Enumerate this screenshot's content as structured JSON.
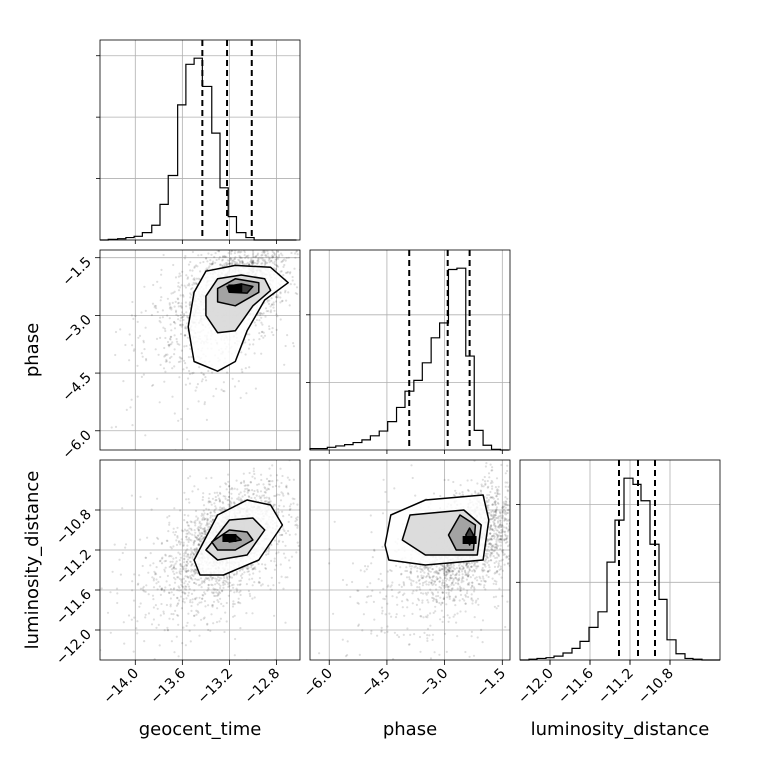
{
  "chart_data": {
    "type": "corner",
    "variables": [
      {
        "key": "geocent_time",
        "label": "geocent_time",
        "range": [
          -14.3,
          -12.6
        ],
        "ticks": [
          -14.0,
          -13.6,
          -13.2,
          -12.8
        ],
        "tick_labels": [
          "−14.0",
          "−13.6",
          "−13.2",
          "−12.8"
        ],
        "quantiles": [
          -13.43,
          -13.22,
          -13.01
        ],
        "hist_bins": [
          -14.3,
          -14.23,
          -14.15,
          -14.08,
          -14.01,
          -13.94,
          -13.86,
          -13.79,
          -13.72,
          -13.64,
          -13.57,
          -13.5,
          -13.43,
          -13.35,
          -13.28,
          -13.21,
          -13.14,
          -13.06,
          -12.99,
          -12.92,
          -12.85,
          -12.77,
          -12.7,
          -12.63
        ],
        "hist_counts": [
          0,
          1,
          2,
          4,
          6,
          12,
          24,
          58,
          105,
          220,
          286,
          296,
          250,
          174,
          85,
          38,
          12,
          4,
          0,
          0,
          0,
          0,
          0
        ]
      },
      {
        "key": "phase",
        "label": "phase",
        "range": [
          -6.5,
          -1.3
        ],
        "ticks": [
          -6.0,
          -4.5,
          -3.0,
          -1.5
        ],
        "tick_labels": [
          "−6.0",
          "−4.5",
          "−3.0",
          "−1.5"
        ],
        "quantiles": [
          -3.92,
          -2.92,
          -2.35
        ],
        "hist_bins": [
          -6.5,
          -6.28,
          -6.05,
          -5.83,
          -5.6,
          -5.38,
          -5.15,
          -4.93,
          -4.7,
          -4.48,
          -4.25,
          -4.03,
          -3.8,
          -3.58,
          -3.35,
          -3.13,
          -2.9,
          -2.68,
          -2.45,
          -2.23,
          -2.0,
          -1.78,
          -1.55,
          -1.33
        ],
        "hist_counts": [
          2,
          2,
          4,
          6,
          8,
          11,
          15,
          21,
          28,
          42,
          63,
          87,
          103,
          129,
          166,
          188,
          267,
          269,
          139,
          29,
          7,
          1,
          0
        ]
      },
      {
        "key": "luminosity_distance",
        "label": "luminosity_distance",
        "range": [
          -12.3,
          -10.3
        ],
        "ticks": [
          -12.0,
          -11.6,
          -11.2,
          -10.8
        ],
        "tick_labels": [
          "−12.0",
          "−11.6",
          "−11.2",
          "−10.8"
        ],
        "quantiles": [
          -11.31,
          -11.12,
          -10.95
        ],
        "hist_bins": [
          -12.3,
          -12.21,
          -12.13,
          -12.04,
          -11.96,
          -11.87,
          -11.78,
          -11.7,
          -11.61,
          -11.52,
          -11.43,
          -11.35,
          -11.26,
          -11.17,
          -11.09,
          -11.0,
          -10.91,
          -10.83,
          -10.74,
          -10.65,
          -10.57,
          -10.48,
          -10.39,
          -10.3
        ],
        "hist_counts": [
          0,
          1,
          2,
          3,
          5,
          9,
          15,
          24,
          42,
          62,
          126,
          180,
          234,
          226,
          205,
          149,
          78,
          26,
          8,
          2,
          1,
          0,
          0
        ]
      }
    ],
    "pairs": [
      {
        "x": "geocent_time",
        "y": "phase",
        "mode": [
          -13.15,
          -2.3
        ],
        "levels": [
          [
            [
              -13.5,
              -2.4
            ],
            [
              -13.4,
              -1.85
            ],
            [
              -13.15,
              -1.7
            ],
            [
              -12.85,
              -1.75
            ],
            [
              -12.7,
              -2.15
            ],
            [
              -12.9,
              -2.6
            ],
            [
              -13.05,
              -3.4
            ],
            [
              -13.15,
              -4.2
            ],
            [
              -13.3,
              -4.45
            ],
            [
              -13.5,
              -4.2
            ],
            [
              -13.55,
              -3.3
            ]
          ],
          [
            [
              -13.4,
              -2.5
            ],
            [
              -13.3,
              -2.05
            ],
            [
              -13.1,
              -1.95
            ],
            [
              -12.9,
              -2.05
            ],
            [
              -12.85,
              -2.35
            ],
            [
              -13.0,
              -2.75
            ],
            [
              -13.15,
              -3.4
            ],
            [
              -13.3,
              -3.45
            ],
            [
              -13.4,
              -3.0
            ]
          ],
          [
            [
              -13.3,
              -2.3
            ],
            [
              -13.15,
              -2.05
            ],
            [
              -12.95,
              -2.15
            ],
            [
              -12.95,
              -2.4
            ],
            [
              -13.15,
              -2.75
            ],
            [
              -13.3,
              -2.65
            ]
          ],
          [
            [
              -13.22,
              -2.25
            ],
            [
              -13.1,
              -2.18
            ],
            [
              -13.0,
              -2.25
            ],
            [
              -13.05,
              -2.42
            ],
            [
              -13.2,
              -2.4
            ]
          ]
        ]
      },
      {
        "x": "geocent_time",
        "y": "luminosity_distance",
        "mode": [
          -13.2,
          -11.08
        ],
        "levels": [
          [
            [
              -13.5,
              -11.3
            ],
            [
              -13.3,
              -10.85
            ],
            [
              -13.05,
              -10.7
            ],
            [
              -12.85,
              -10.75
            ],
            [
              -12.75,
              -10.95
            ],
            [
              -12.95,
              -11.3
            ],
            [
              -13.25,
              -11.45
            ],
            [
              -13.45,
              -11.45
            ]
          ],
          [
            [
              -13.4,
              -11.2
            ],
            [
              -13.2,
              -10.9
            ],
            [
              -13.0,
              -10.88
            ],
            [
              -12.9,
              -11.0
            ],
            [
              -13.05,
              -11.25
            ],
            [
              -13.3,
              -11.3
            ]
          ],
          [
            [
              -13.35,
              -11.12
            ],
            [
              -13.2,
              -11.0
            ],
            [
              -13.05,
              -11.02
            ],
            [
              -13.0,
              -11.1
            ],
            [
              -13.15,
              -11.2
            ],
            [
              -13.3,
              -11.2
            ]
          ],
          [
            [
              -13.25,
              -11.08
            ],
            [
              -13.15,
              -11.05
            ],
            [
              -13.1,
              -11.1
            ],
            [
              -13.2,
              -11.12
            ]
          ]
        ]
      },
      {
        "x": "phase",
        "y": "luminosity_distance",
        "mode": [
          -2.35,
          -11.1
        ],
        "levels": [
          [
            [
              -4.55,
              -11.15
            ],
            [
              -4.4,
              -10.85
            ],
            [
              -3.5,
              -10.7
            ],
            [
              -2.0,
              -10.65
            ],
            [
              -1.85,
              -10.9
            ],
            [
              -2.0,
              -11.3
            ],
            [
              -3.5,
              -11.35
            ],
            [
              -4.45,
              -11.3
            ]
          ],
          [
            [
              -4.1,
              -11.1
            ],
            [
              -3.9,
              -10.85
            ],
            [
              -2.5,
              -10.8
            ],
            [
              -2.05,
              -10.95
            ],
            [
              -2.15,
              -11.25
            ],
            [
              -3.5,
              -11.25
            ]
          ],
          [
            [
              -2.9,
              -11.05
            ],
            [
              -2.6,
              -10.85
            ],
            [
              -2.2,
              -10.95
            ],
            [
              -2.25,
              -11.2
            ],
            [
              -2.7,
              -11.2
            ]
          ],
          [
            [
              -2.45,
              -11.05
            ],
            [
              -2.35,
              -10.98
            ],
            [
              -2.25,
              -11.05
            ],
            [
              -2.35,
              -11.15
            ]
          ]
        ]
      }
    ]
  }
}
